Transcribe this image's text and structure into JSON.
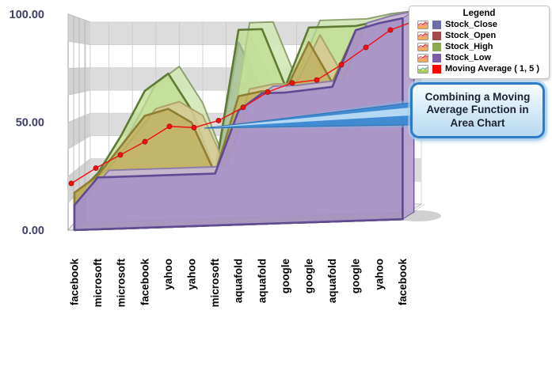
{
  "legend": {
    "title": "Legend",
    "items": [
      {
        "label": "Stock_Close",
        "color": "#6F6FA8",
        "icon": "area-chart-icon"
      },
      {
        "label": "Stock_Open",
        "color": "#A34B4B",
        "icon": "area-chart-icon"
      },
      {
        "label": "Stock_High",
        "color": "#8CA855",
        "icon": "area-chart-icon"
      },
      {
        "label": "Stock_Low",
        "color": "#7A5FA8",
        "icon": "area-chart-icon"
      },
      {
        "label": "Moving Average ( 1, 5 )",
        "color": "#FF0000",
        "icon": "moving-average-icon"
      }
    ]
  },
  "callout": {
    "text": "Combining a Moving Average Function in Area Chart",
    "border_color": "#2E7CC8"
  },
  "chart_data": {
    "type": "area",
    "projection": "3d",
    "title": "",
    "categories": [
      "facebook",
      "microsoft",
      "microsoft",
      "facebook",
      "yahoo",
      "yahoo",
      "microsoft",
      "aquafold",
      "aquafold",
      "google",
      "google",
      "aquafold",
      "google",
      "yahoo",
      "facebook"
    ],
    "ylim": [
      0,
      100
    ],
    "y_axis_ticks": [
      {
        "label": "100.00",
        "value": 100
      },
      {
        "label": "50.00",
        "value": 50
      },
      {
        "label": "0.00",
        "value": 0
      }
    ],
    "grid": true,
    "legend_position": "top-right",
    "series": [
      {
        "name": "Stock_Close",
        "fill": "#8888BE",
        "border": "#4A4A8A",
        "opacity": 0.95,
        "values": [
          14,
          26,
          35,
          45,
          50,
          45,
          25,
          88,
          64,
          63,
          66,
          68,
          90,
          96,
          97
        ]
      },
      {
        "name": "Stock_High",
        "fill": "#BCDC8E",
        "border": "#5F7A33",
        "opacity": 0.72,
        "values": [
          16,
          27,
          45,
          66,
          74,
          56,
          26,
          94,
          94,
          66,
          94,
          94,
          94,
          96,
          97
        ]
      },
      {
        "name": "Stock_Open",
        "fill": "#BFB05C",
        "border": "#8F7E34",
        "opacity": 0.78,
        "values": [
          18,
          26,
          40,
          54,
          57,
          50,
          25,
          62,
          64,
          64,
          87,
          67,
          92,
          95,
          96
        ]
      },
      {
        "name": "Stock_Low",
        "fill": "#A893C6",
        "border": "#5F4A96",
        "opacity": 0.93,
        "values": [
          12,
          25,
          25,
          25,
          25,
          25,
          25,
          55,
          63,
          63,
          64,
          65,
          92,
          95,
          97
        ]
      }
    ],
    "moving_average": {
      "name": "Moving Average ( 1, 5 )",
      "color": "#F01111",
      "values": [
        21,
        28,
        34,
        40,
        47,
        46,
        49,
        55,
        62,
        66,
        67,
        74,
        82,
        90,
        94
      ]
    }
  }
}
